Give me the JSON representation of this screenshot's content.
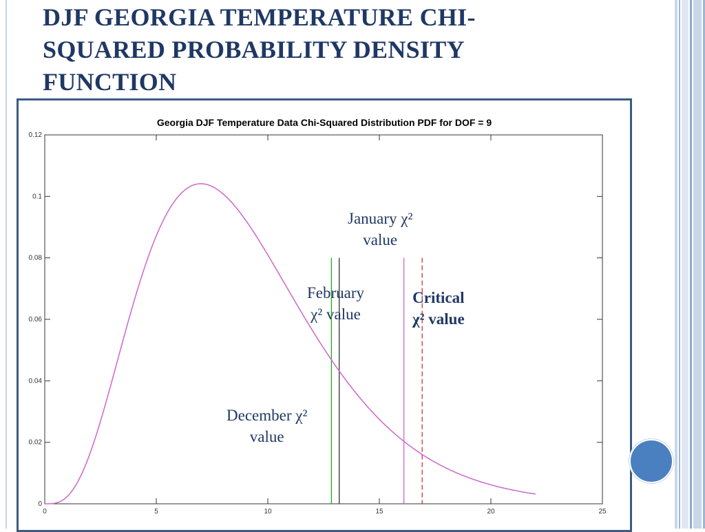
{
  "slide": {
    "title": "DJF GEORGIA TEMPERATURE CHI-SQUARED PROBABILITY DENSITY FUNCTION"
  },
  "annotations": {
    "january": {
      "line1": "January χ²",
      "line2": "value"
    },
    "february": {
      "line1": "February",
      "line2": "χ² value"
    },
    "critical": {
      "line1": "Critical",
      "line2": "χ² value"
    },
    "december": {
      "line1": "December χ²",
      "line2": "value"
    }
  },
  "chart_data": {
    "type": "line",
    "title": "Georgia DJF Temperature Data Chi-Squared Distribution PDF for DOF = 9",
    "xlabel": "",
    "ylabel": "",
    "xlim": [
      0,
      25
    ],
    "ylim": [
      0,
      0.12
    ],
    "x_ticks": [
      "0",
      "5",
      "10",
      "15",
      "20",
      "25"
    ],
    "y_ticks": [
      "0",
      "0.02",
      "0.04",
      "0.06",
      "0.08",
      "0.1",
      "0.12"
    ],
    "grid": false,
    "pdf_curve": {
      "dof": 9,
      "x_start": 0,
      "x_end": 22,
      "color": "#cc66cc"
    },
    "vertical_lines": [
      {
        "id": "december",
        "x": 12.85,
        "color": "#22aa22",
        "style": "solid"
      },
      {
        "id": "february",
        "x": 13.2,
        "color": "#333333",
        "style": "solid"
      },
      {
        "id": "january",
        "x": 16.1,
        "color": "#cc66cc",
        "style": "solid"
      },
      {
        "id": "critical",
        "x": 16.92,
        "color": "#cc3333",
        "style": "dashed"
      }
    ],
    "vertical_line_ytop": 0.08
  },
  "colors": {
    "title": "#1f3864",
    "frame": "#3b5a80",
    "accent_circle": "#4a7fc0"
  }
}
